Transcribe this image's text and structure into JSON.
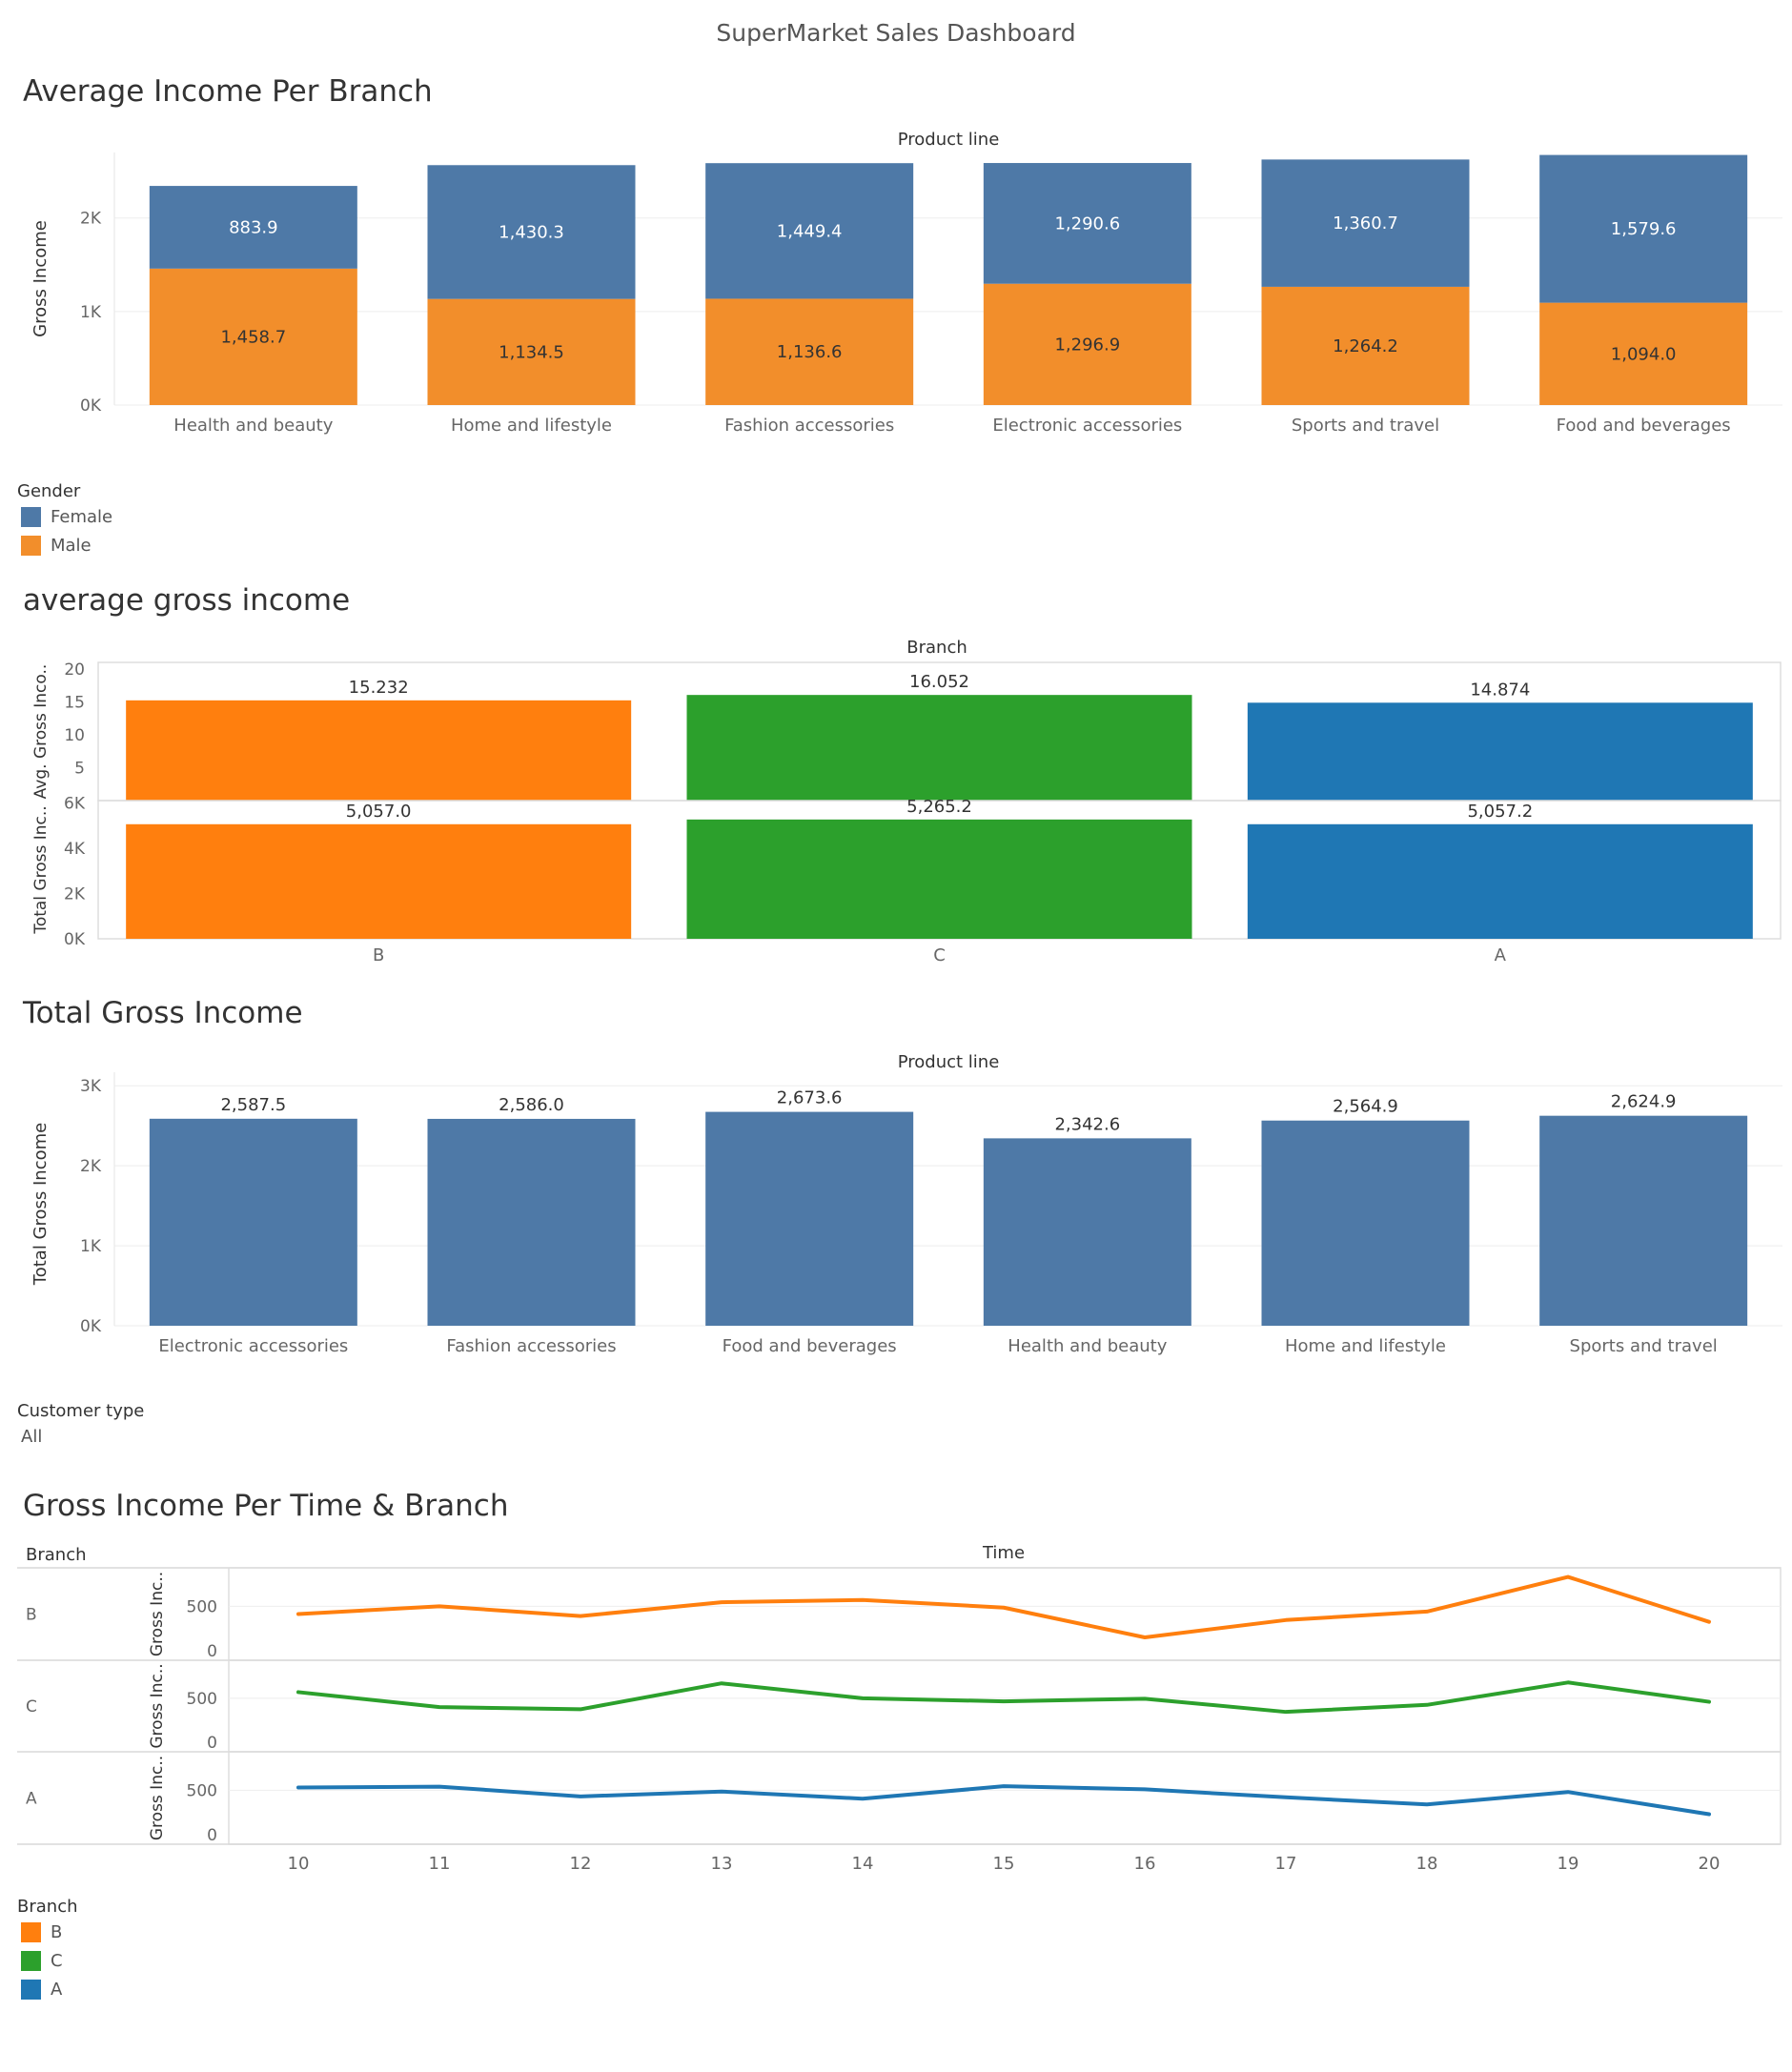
{
  "dashboard": {
    "title": "SuperMarket Sales Dashboard"
  },
  "colors": {
    "female": "#4e79a7",
    "male": "#f28e2b",
    "branch_B": "#ff7f0e",
    "branch_C": "#2ca02c",
    "branch_A": "#1f77b4",
    "total_bar": "#4e79a7",
    "grid": "#eeeeee",
    "axis_text": "#666666"
  },
  "sections": {
    "avg_income": "Average Income Per Branch",
    "avg_gross": "average gross income",
    "total_gross": "Total Gross Income",
    "time_branch": "Gross Income Per Time & Branch"
  },
  "legends": {
    "gender": {
      "title": "Gender",
      "items": [
        "Female",
        "Male"
      ]
    },
    "customer_type": {
      "title": "Customer type",
      "value": "All"
    },
    "branch": {
      "title": "Branch",
      "items": [
        "B",
        "C",
        "A"
      ]
    }
  },
  "chart_data": [
    {
      "type": "bar",
      "stacked": true,
      "header": "Product line",
      "ylabel": "Gross Income",
      "ylim": [
        0,
        2700
      ],
      "yticks": [
        {
          "v": 0,
          "label": "0K"
        },
        {
          "v": 1000,
          "label": "1K"
        },
        {
          "v": 2000,
          "label": "2K"
        }
      ],
      "categories": [
        "Health and beauty",
        "Home and lifestyle",
        "Fashion accessories",
        "Electronic accessories",
        "Sports and travel",
        "Food and beverages"
      ],
      "series": [
        {
          "name": "Male",
          "values": [
            1458.7,
            1134.5,
            1136.6,
            1296.9,
            1264.2,
            1094.0
          ],
          "labels": [
            "1,458.7",
            "1,134.5",
            "1,136.6",
            "1,296.9",
            "1,264.2",
            "1,094.0"
          ]
        },
        {
          "name": "Female",
          "values": [
            883.9,
            1430.3,
            1449.4,
            1290.6,
            1360.7,
            1579.6
          ],
          "labels": [
            "883.9",
            "1,430.3",
            "1,449.4",
            "1,290.6",
            "1,360.7",
            "1,579.6"
          ]
        }
      ]
    },
    {
      "type": "bar",
      "header": "Branch",
      "categories": [
        "B",
        "C",
        "A"
      ],
      "panels": [
        {
          "ylabel": "Avg. Gross Inco..",
          "ylim": [
            0,
            21
          ],
          "yticks": [
            {
              "v": 5,
              "label": "5"
            },
            {
              "v": 10,
              "label": "10"
            },
            {
              "v": 15,
              "label": "15"
            },
            {
              "v": 20,
              "label": "20"
            }
          ],
          "values": [
            15.232,
            16.052,
            14.874
          ],
          "labels": [
            "15.232",
            "16.052",
            "14.874"
          ]
        },
        {
          "ylabel": "Total Gross Inc..",
          "ylim": [
            0,
            6100
          ],
          "yticks": [
            {
              "v": 0,
              "label": "0K"
            },
            {
              "v": 2000,
              "label": "2K"
            },
            {
              "v": 4000,
              "label": "4K"
            },
            {
              "v": 6000,
              "label": "6K"
            }
          ],
          "values": [
            5057.0,
            5265.2,
            5057.2
          ],
          "labels": [
            "5,057.0",
            "5,265.2",
            "5,057.2"
          ]
        }
      ]
    },
    {
      "type": "bar",
      "header": "Product line",
      "ylabel": "Total Gross Income",
      "ylim": [
        0,
        3050
      ],
      "yticks": [
        {
          "v": 0,
          "label": "0K"
        },
        {
          "v": 1000,
          "label": "1K"
        },
        {
          "v": 2000,
          "label": "2K"
        },
        {
          "v": 3000,
          "label": "3K"
        }
      ],
      "categories": [
        "Electronic accessories",
        "Fashion accessories",
        "Food and beverages",
        "Health and beauty",
        "Home and lifestyle",
        "Sports and travel"
      ],
      "values": [
        2587.5,
        2586.0,
        2673.6,
        2342.6,
        2564.9,
        2624.9
      ],
      "labels": [
        "2,587.5",
        "2,586.0",
        "2,673.6",
        "2,342.6",
        "2,564.9",
        "2,624.9"
      ]
    },
    {
      "type": "line",
      "header": "Time",
      "row_header": "Branch",
      "ylabel": "Gross Inc..",
      "ylim": [
        0,
        900
      ],
      "yticks": [
        {
          "v": 0,
          "label": "0"
        },
        {
          "v": 500,
          "label": "500"
        }
      ],
      "x": [
        10,
        11,
        12,
        13,
        14,
        15,
        16,
        17,
        18,
        19,
        20
      ],
      "series": [
        {
          "name": "B",
          "values": [
            412,
            500,
            390,
            545,
            570,
            485,
            150,
            345,
            440,
            830,
            325
          ]
        },
        {
          "name": "C",
          "values": [
            570,
            400,
            375,
            670,
            500,
            465,
            495,
            345,
            425,
            680,
            460
          ]
        },
        {
          "name": "A",
          "values": [
            530,
            540,
            430,
            485,
            405,
            545,
            510,
            420,
            340,
            480,
            230
          ]
        }
      ]
    }
  ]
}
